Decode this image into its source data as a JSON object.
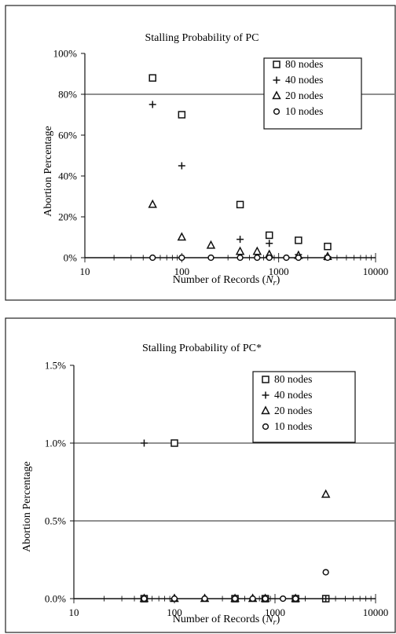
{
  "chart_data": [
    {
      "type": "scatter",
      "title": "Stalling Probability of PC",
      "xlabel": "Number of Records (",
      "xlabel_var": "N",
      "xlabel_sub": "r",
      "xlabel_close": ")",
      "ylabel": "Abortion Percentage",
      "xscale": "log",
      "xlim": [
        10,
        10000
      ],
      "ylim": [
        0,
        100
      ],
      "yticks": [
        0,
        20,
        40,
        60,
        80,
        100
      ],
      "ytick_labels": [
        "0%",
        "20%",
        "40%",
        "60%",
        "80%",
        "100%"
      ],
      "xticks": [
        10,
        100,
        1000,
        10000
      ],
      "xtick_labels": [
        "10",
        "100",
        "1000",
        "10000"
      ],
      "hlines": [
        80
      ],
      "legend_position": "top-right",
      "series": [
        {
          "name": "80 nodes",
          "marker": "square",
          "x": [
            50,
            100,
            400,
            800,
            1600,
            3200
          ],
          "y": [
            88,
            70,
            26,
            11,
            8.5,
            5.5
          ]
        },
        {
          "name": "40 nodes",
          "marker": "plus",
          "x": [
            50,
            100,
            400,
            800,
            1600,
            3200
          ],
          "y": [
            75,
            45,
            9,
            7,
            1.5,
            0.5
          ]
        },
        {
          "name": "20 nodes",
          "marker": "triangle",
          "x": [
            50,
            100,
            200,
            400,
            600,
            800,
            1600,
            3200
          ],
          "y": [
            26,
            10,
            6,
            3,
            3,
            1.5,
            1,
            0.5
          ]
        },
        {
          "name": "10 nodes",
          "marker": "circle",
          "x": [
            50,
            100,
            200,
            400,
            600,
            800,
            1200,
            1600,
            3200
          ],
          "y": [
            0,
            0,
            0,
            0,
            0,
            0,
            0,
            0,
            0
          ]
        }
      ]
    },
    {
      "type": "scatter",
      "title": "Stalling Probability of PC*",
      "xlabel": "Number of Records (",
      "xlabel_var": "N",
      "xlabel_sub": "r",
      "xlabel_close": ")",
      "ylabel": "Abortion Percentage",
      "xscale": "log",
      "xlim": [
        10,
        10000
      ],
      "ylim": [
        0,
        1.5
      ],
      "yticks": [
        0,
        0.5,
        1.0,
        1.5
      ],
      "ytick_labels": [
        "0.0%",
        "0.5%",
        "1.0%",
        "1.5%"
      ],
      "xticks": [
        10,
        100,
        1000,
        10000
      ],
      "xtick_labels": [
        "10",
        "100",
        "1000",
        "10000"
      ],
      "hlines": [
        0.5,
        1.0
      ],
      "legend_position": "top-right",
      "series": [
        {
          "name": "80 nodes",
          "marker": "square",
          "x": [
            50,
            100,
            400,
            800,
            1600,
            3200
          ],
          "y": [
            0,
            1.0,
            0,
            0,
            0,
            0
          ]
        },
        {
          "name": "40 nodes",
          "marker": "plus",
          "x": [
            50,
            100,
            400,
            800,
            1600,
            3200
          ],
          "y": [
            1.0,
            0,
            0,
            0,
            0,
            0
          ]
        },
        {
          "name": "20 nodes",
          "marker": "triangle",
          "x": [
            50,
            100,
            200,
            400,
            600,
            800,
            1600,
            3200
          ],
          "y": [
            0,
            0,
            0,
            0,
            0,
            0,
            0,
            0.67
          ]
        },
        {
          "name": "10 nodes",
          "marker": "circle",
          "x": [
            50,
            100,
            200,
            400,
            600,
            800,
            1200,
            1600,
            3200
          ],
          "y": [
            0,
            0,
            0,
            0,
            0,
            0,
            0,
            0,
            0.17
          ]
        }
      ]
    }
  ]
}
